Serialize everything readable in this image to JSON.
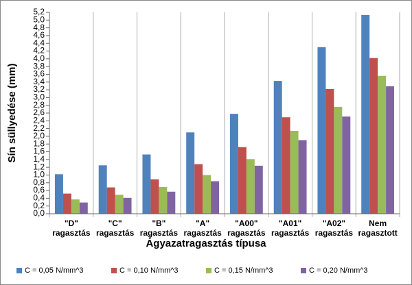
{
  "chart_data": {
    "type": "bar",
    "x_label": "Ágyazatragasztás típusa",
    "y_label": "Sín süllyedése (mm)",
    "categories": [
      "\"D\"\nragasztás",
      "\"C\"\nragasztás",
      "\"B\"\nragasztás",
      "\"A\"\nragasztás",
      "\"A00\"\nragasztás",
      "\"A01\"\nragasztás",
      "\"A02\"\nragasztás",
      "Nem\nragasztott"
    ],
    "series": [
      {
        "name": "C = 0,05 N/mm^3",
        "color": "#4f81bd",
        "values": [
          1.02,
          1.25,
          1.53,
          2.1,
          2.58,
          3.43,
          4.3,
          5.13
        ]
      },
      {
        "name": "C = 0,10 N/mm^3",
        "color": "#c0504d",
        "values": [
          0.52,
          0.68,
          0.89,
          1.28,
          1.72,
          2.49,
          3.22,
          4.02
        ]
      },
      {
        "name": "C = 0,15 N/mm^3",
        "color": "#9bbb59",
        "values": [
          0.37,
          0.49,
          0.69,
          1.0,
          1.41,
          2.14,
          2.76,
          3.56
        ]
      },
      {
        "name": "C = 0,20 N/mm^3",
        "color": "#8064a2",
        "values": [
          0.29,
          0.41,
          0.57,
          0.84,
          1.24,
          1.9,
          2.51,
          3.29
        ]
      }
    ],
    "ylim": [
      0,
      5.2
    ],
    "yticks": [
      {
        "value": 0,
        "label": "0,0"
      },
      {
        "value": 0.2,
        "label": "0,2"
      },
      {
        "value": 0.4,
        "label": "0,4"
      },
      {
        "value": 0.6,
        "label": "0,6"
      },
      {
        "value": 0.8,
        "label": "0,8"
      },
      {
        "value": 1.0,
        "label": "1,0"
      },
      {
        "value": 1.2,
        "label": "1,2"
      },
      {
        "value": 1.4,
        "label": "1,4"
      },
      {
        "value": 1.6,
        "label": "1,6"
      },
      {
        "value": 1.8,
        "label": "1,8"
      },
      {
        "value": 2.0,
        "label": "2,0"
      },
      {
        "value": 2.2,
        "label": "2,2"
      },
      {
        "value": 2.4,
        "label": "2,4"
      },
      {
        "value": 2.6,
        "label": "2,6"
      },
      {
        "value": 2.8,
        "label": "2,8"
      },
      {
        "value": 3.0,
        "label": "3,0"
      },
      {
        "value": 3.2,
        "label": "3,2"
      },
      {
        "value": 3.4,
        "label": "3,4"
      },
      {
        "value": 3.6,
        "label": "3,6"
      },
      {
        "value": 3.8,
        "label": "3,8"
      },
      {
        "value": 4.0,
        "label": "4,0"
      },
      {
        "value": 4.2,
        "label": "4,2"
      },
      {
        "value": 4.4,
        "label": "4,4"
      },
      {
        "value": 4.6,
        "label": "4,6"
      },
      {
        "value": 4.8,
        "label": "4,8"
      },
      {
        "value": 5.0,
        "label": "5,0"
      },
      {
        "value": 5.2,
        "label": "5,2"
      }
    ],
    "legend": "bottom"
  }
}
